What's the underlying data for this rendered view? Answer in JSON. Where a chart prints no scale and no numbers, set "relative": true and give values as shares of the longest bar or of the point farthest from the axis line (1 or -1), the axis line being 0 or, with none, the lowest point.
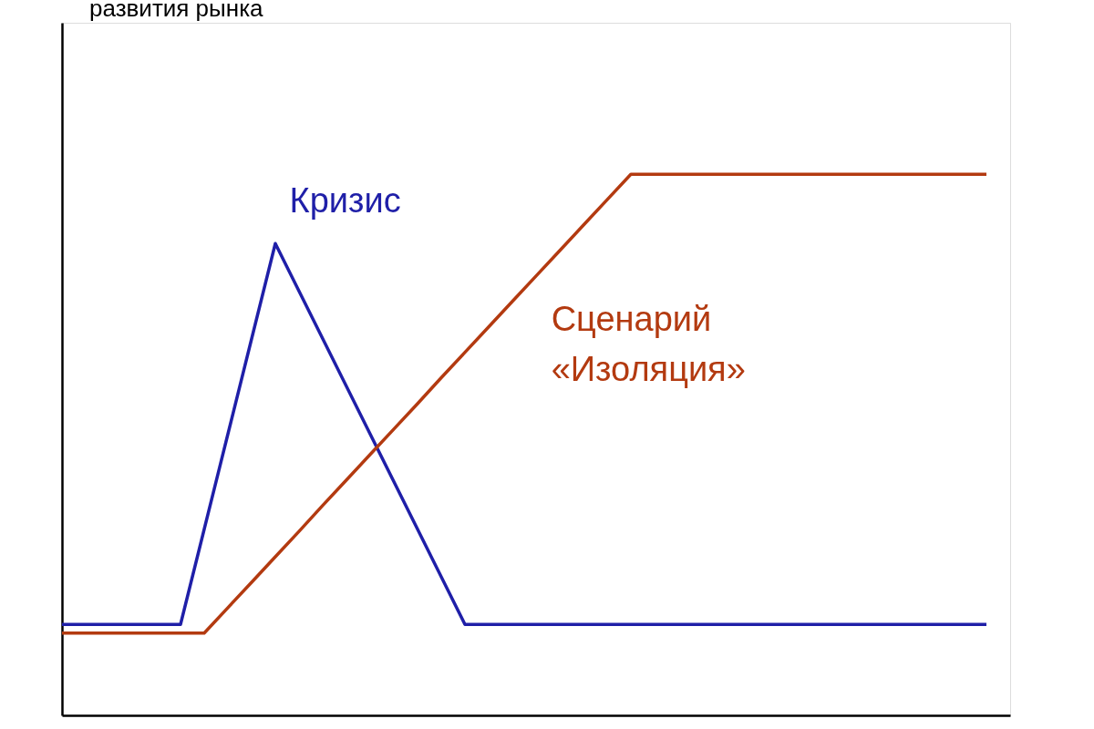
{
  "chart_data": {
    "type": "line",
    "annotations": [
      "развития рынка"
    ],
    "relative": true,
    "legend": false,
    "grid": false,
    "marker": "none",
    "line_style": "solid",
    "categories": [
      null,
      null,
      null,
      null,
      null,
      null,
      null,
      null,
      null,
      null,
      null,
      null,
      null,
      null,
      null,
      null,
      null,
      null,
      null,
      null,
      null,
      null,
      null,
      null,
      null,
      null,
      null,
      null,
      null,
      null,
      null,
      null,
      null,
      null,
      null,
      null,
      null,
      null,
      null,
      null
    ],
    "series": [
      {
        "name": "Кризис",
        "color": "#1f1fa8",
        "values": [
          0.168,
          0.168,
          0.168,
          0.168,
          0.168,
          0.168,
          0.344,
          0.52,
          0.696,
          0.872,
          0.784,
          0.696,
          0.608,
          0.52,
          0.432,
          0.344,
          0.256,
          0.168,
          0.168,
          0.168,
          0.168,
          0.168,
          0.168,
          0.168,
          0.168,
          0.168,
          0.168,
          0.168,
          0.168,
          0.168,
          0.168,
          0.168,
          0.168,
          0.168,
          0.168,
          0.168,
          0.168,
          0.168,
          0.168,
          0.168
        ]
      },
      {
        "name": "Сценарий «Изоляция»",
        "color": "#b33a10",
        "values": [
          0.152,
          0.152,
          0.152,
          0.152,
          0.152,
          0.152,
          0.152,
          0.199,
          0.246,
          0.293,
          0.34,
          0.388,
          0.435,
          0.482,
          0.529,
          0.576,
          0.624,
          0.671,
          0.718,
          0.765,
          0.812,
          0.859,
          0.906,
          0.953,
          1.0,
          1.0,
          1.0,
          1.0,
          1.0,
          1.0,
          1.0,
          1.0,
          1.0,
          1.0,
          1.0,
          1.0,
          1.0,
          1.0,
          1.0,
          1.0
        ]
      }
    ]
  }
}
